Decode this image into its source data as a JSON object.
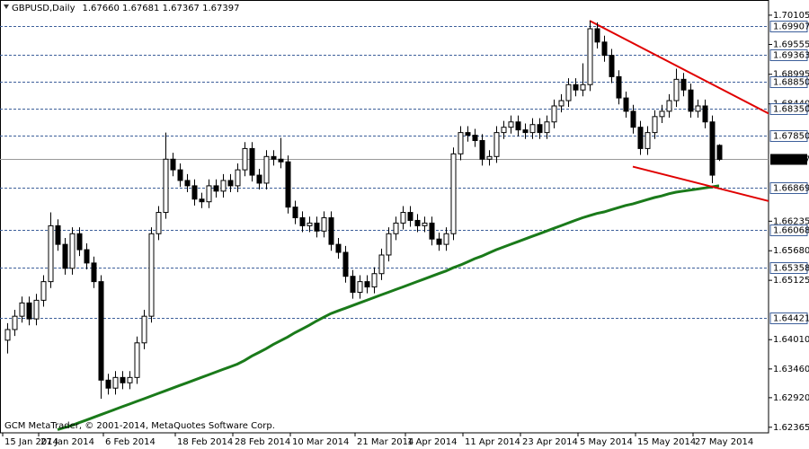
{
  "chart_data": {
    "type": "candlestick",
    "title": "GBPUSD,Daily",
    "subtitle": "1.67660 1.67681 1.67367 1.67397",
    "annotation": "GCM MetaTrader, © 2001-2014, MetaQuotes Software Corp.",
    "categories": [
      "15 Jan 2014",
      null,
      null,
      null,
      null,
      "27 Jan 2014",
      null,
      null,
      null,
      null,
      null,
      null,
      null,
      null,
      "6 Feb 2014",
      null,
      null,
      null,
      null,
      null,
      null,
      null,
      null,
      null,
      "18 Feb 2014",
      null,
      null,
      null,
      null,
      null,
      null,
      null,
      "28 Feb 2014",
      null,
      null,
      null,
      null,
      null,
      null,
      null,
      "10 Mar 2014",
      null,
      null,
      null,
      null,
      null,
      null,
      null,
      null,
      "21 Mar 2014",
      null,
      null,
      null,
      null,
      null,
      null,
      "1 Apr 2014",
      null,
      null,
      null,
      null,
      null,
      null,
      null,
      "11 Apr 2014",
      null,
      null,
      null,
      null,
      null,
      null,
      null,
      "23 Apr 2014",
      null,
      null,
      null,
      null,
      null,
      null,
      null,
      "5 May 2014",
      null,
      null,
      null,
      null,
      null,
      null,
      null,
      "15 May 2014",
      null,
      null,
      null,
      null,
      null,
      null,
      null,
      "27 May 2014",
      null,
      null,
      null
    ],
    "open": [
      1.64,
      1.642,
      1.6445,
      1.647,
      1.644,
      1.6475,
      1.651,
      1.6615,
      1.658,
      1.6535,
      1.66,
      1.657,
      1.6545,
      1.651,
      1.6325,
      1.631,
      1.633,
      1.632,
      1.633,
      1.6395,
      1.6445,
      1.66,
      1.664,
      1.674,
      1.672,
      1.67,
      1.669,
      1.6665,
      1.666,
      1.669,
      1.668,
      1.67,
      1.669,
      1.672,
      1.676,
      1.671,
      1.6695,
      1.6745,
      1.674,
      1.6735,
      1.665,
      1.663,
      1.6615,
      1.662,
      1.6605,
      1.663,
      1.658,
      1.6565,
      1.652,
      1.649,
      1.651,
      1.65,
      1.6525,
      1.656,
      1.66,
      1.662,
      1.664,
      1.6625,
      1.6615,
      1.662,
      1.659,
      1.658,
      1.66,
      1.675,
      1.679,
      1.6785,
      1.6775,
      1.674,
      1.6745,
      1.679,
      1.68,
      1.681,
      1.6795,
      1.679,
      1.6805,
      1.679,
      1.681,
      1.684,
      1.685,
      1.688,
      1.687,
      1.688,
      1.6985,
      1.696,
      1.6935,
      1.6895,
      1.6855,
      1.683,
      1.68,
      1.676,
      1.679,
      1.682,
      1.683,
      1.685,
      1.689,
      1.687,
      1.683,
      1.684,
      1.681,
      1.6766
    ],
    "high": [
      1.6432,
      1.6457,
      1.6482,
      1.6482,
      1.6487,
      1.6522,
      1.664,
      1.6627,
      1.6592,
      1.6612,
      1.6612,
      1.6582,
      1.6557,
      1.6522,
      1.6337,
      1.6342,
      1.6342,
      1.6342,
      1.6407,
      1.6457,
      1.6612,
      1.6652,
      1.679,
      1.6752,
      1.6732,
      1.6712,
      1.6702,
      1.6677,
      1.6702,
      1.6702,
      1.6712,
      1.6712,
      1.6732,
      1.6772,
      1.6772,
      1.6722,
      1.6757,
      1.6757,
      1.678,
      1.6747,
      1.6662,
      1.6642,
      1.6632,
      1.6632,
      1.6642,
      1.6642,
      1.6592,
      1.6577,
      1.6532,
      1.6522,
      1.6522,
      1.6537,
      1.6572,
      1.6612,
      1.6632,
      1.6652,
      1.6652,
      1.6637,
      1.6632,
      1.6632,
      1.6602,
      1.6612,
      1.6762,
      1.6802,
      1.6802,
      1.6797,
      1.6787,
      1.6757,
      1.6802,
      1.6812,
      1.6822,
      1.6822,
      1.6807,
      1.6817,
      1.6817,
      1.6822,
      1.6852,
      1.6862,
      1.6892,
      1.6892,
      1.692,
      1.7,
      1.6997,
      1.6972,
      1.6947,
      1.6907,
      1.6867,
      1.6842,
      1.6812,
      1.6802,
      1.6832,
      1.6842,
      1.6862,
      1.691,
      1.6902,
      1.6882,
      1.6852,
      1.6852,
      1.6822,
      1.67681
    ],
    "low": [
      1.6375,
      1.6408,
      1.6433,
      1.6428,
      1.6428,
      1.6463,
      1.6498,
      1.6568,
      1.6523,
      1.6523,
      1.6558,
      1.6533,
      1.6498,
      1.629,
      1.6298,
      1.6298,
      1.6308,
      1.6308,
      1.6318,
      1.6383,
      1.6433,
      1.6588,
      1.6628,
      1.6708,
      1.6688,
      1.6678,
      1.6653,
      1.6648,
      1.6648,
      1.6668,
      1.6668,
      1.6678,
      1.6678,
      1.6708,
      1.6698,
      1.6683,
      1.6683,
      1.6728,
      1.6723,
      1.6638,
      1.6618,
      1.6603,
      1.6603,
      1.6593,
      1.6593,
      1.6568,
      1.6553,
      1.6508,
      1.6478,
      1.6478,
      1.6488,
      1.6488,
      1.6513,
      1.6548,
      1.6588,
      1.6608,
      1.6613,
      1.6603,
      1.6603,
      1.6578,
      1.6568,
      1.6568,
      1.6588,
      1.6738,
      1.6773,
      1.6763,
      1.6728,
      1.6728,
      1.6733,
      1.6778,
      1.6788,
      1.6783,
      1.6778,
      1.6778,
      1.6778,
      1.6778,
      1.6798,
      1.6828,
      1.6838,
      1.6858,
      1.6858,
      1.6868,
      1.6948,
      1.6923,
      1.6883,
      1.6843,
      1.6818,
      1.6788,
      1.6748,
      1.6748,
      1.6778,
      1.6808,
      1.6818,
      1.6838,
      1.6858,
      1.6818,
      1.6818,
      1.6798,
      1.6695,
      1.67367
    ],
    "close": [
      1.642,
      1.6445,
      1.647,
      1.644,
      1.6475,
      1.651,
      1.6615,
      1.658,
      1.6535,
      1.66,
      1.657,
      1.6545,
      1.651,
      1.6325,
      1.631,
      1.633,
      1.632,
      1.633,
      1.6395,
      1.6445,
      1.66,
      1.664,
      1.674,
      1.672,
      1.67,
      1.669,
      1.6665,
      1.666,
      1.669,
      1.668,
      1.67,
      1.669,
      1.672,
      1.676,
      1.671,
      1.6695,
      1.6745,
      1.674,
      1.6735,
      1.665,
      1.663,
      1.6615,
      1.662,
      1.6605,
      1.663,
      1.658,
      1.6565,
      1.652,
      1.649,
      1.651,
      1.65,
      1.6525,
      1.656,
      1.66,
      1.662,
      1.664,
      1.6625,
      1.6615,
      1.662,
      1.659,
      1.658,
      1.66,
      1.675,
      1.679,
      1.6785,
      1.6775,
      1.674,
      1.6745,
      1.679,
      1.68,
      1.681,
      1.6795,
      1.679,
      1.6805,
      1.679,
      1.681,
      1.684,
      1.685,
      1.688,
      1.687,
      1.688,
      1.6985,
      1.696,
      1.6935,
      1.6895,
      1.6855,
      1.683,
      1.68,
      1.676,
      1.679,
      1.682,
      1.683,
      1.685,
      1.689,
      1.687,
      1.683,
      1.684,
      1.681,
      1.671,
      1.67397
    ],
    "moving_average": {
      "color": "#1a7a1a",
      "values": [
        null,
        null,
        null,
        null,
        null,
        null,
        null,
        1.6232,
        1.6236,
        1.624,
        1.6245,
        1.625,
        1.6255,
        1.626,
        1.6265,
        1.627,
        1.6275,
        1.628,
        1.6285,
        1.629,
        1.6295,
        1.63,
        1.6305,
        1.631,
        1.6315,
        1.632,
        1.6325,
        1.633,
        1.6335,
        1.634,
        1.6345,
        1.635,
        1.6355,
        1.6362,
        1.637,
        1.6377,
        1.6384,
        1.6392,
        1.6399,
        1.6406,
        1.6414,
        1.6421,
        1.6428,
        1.6436,
        1.6443,
        1.645,
        1.6455,
        1.646,
        1.6465,
        1.647,
        1.6475,
        1.648,
        1.6485,
        1.649,
        1.6495,
        1.65,
        1.6505,
        1.651,
        1.6515,
        1.652,
        1.6525,
        1.653,
        1.6536,
        1.6541,
        1.6547,
        1.6553,
        1.6558,
        1.6564,
        1.657,
        1.6575,
        1.658,
        1.6585,
        1.659,
        1.6595,
        1.66,
        1.6605,
        1.661,
        1.6615,
        1.662,
        1.6625,
        1.663,
        1.6634,
        1.6638,
        1.6641,
        1.6645,
        1.6649,
        1.6653,
        1.6656,
        1.666,
        1.6664,
        1.6668,
        1.6671,
        1.6675,
        1.6678,
        1.668,
        1.6682,
        1.6684,
        1.6686,
        1.6688,
        1.669
      ]
    },
    "trendlines": [
      {
        "color": "#e00000",
        "x": [
          81,
          106
        ],
        "y": [
          1.7,
          1.6825
        ]
      },
      {
        "color": "#e00000",
        "x": [
          87,
          106
        ],
        "y": [
          1.6726,
          1.6661
        ]
      }
    ],
    "levels": [
      1.69907,
      1.69363,
      {
        "value": 1.6885,
        "label": "1.68850"
      },
      {
        "value": 1.6835,
        "label": "1.68350"
      },
      {
        "value": 1.6785,
        "label": "1.67850"
      },
      1.66869,
      1.66068,
      1.65358,
      1.64421
    ],
    "last_price": 1.67397,
    "ylim": [
      1.6226,
      1.7039
    ],
    "yticks": [
      1.70105,
      1.69555,
      1.68995,
      {
        "value": 1.6844,
        "label": "1.68440"
      },
      1.66235,
      {
        "value": 1.6568,
        "label": "1.65680"
      },
      1.65125,
      {
        "value": 1.6401,
        "label": "1.64010"
      },
      {
        "value": 1.6346,
        "label": "1.63460"
      },
      {
        "value": 1.6292,
        "label": "1.62920"
      },
      1.62365
    ]
  }
}
